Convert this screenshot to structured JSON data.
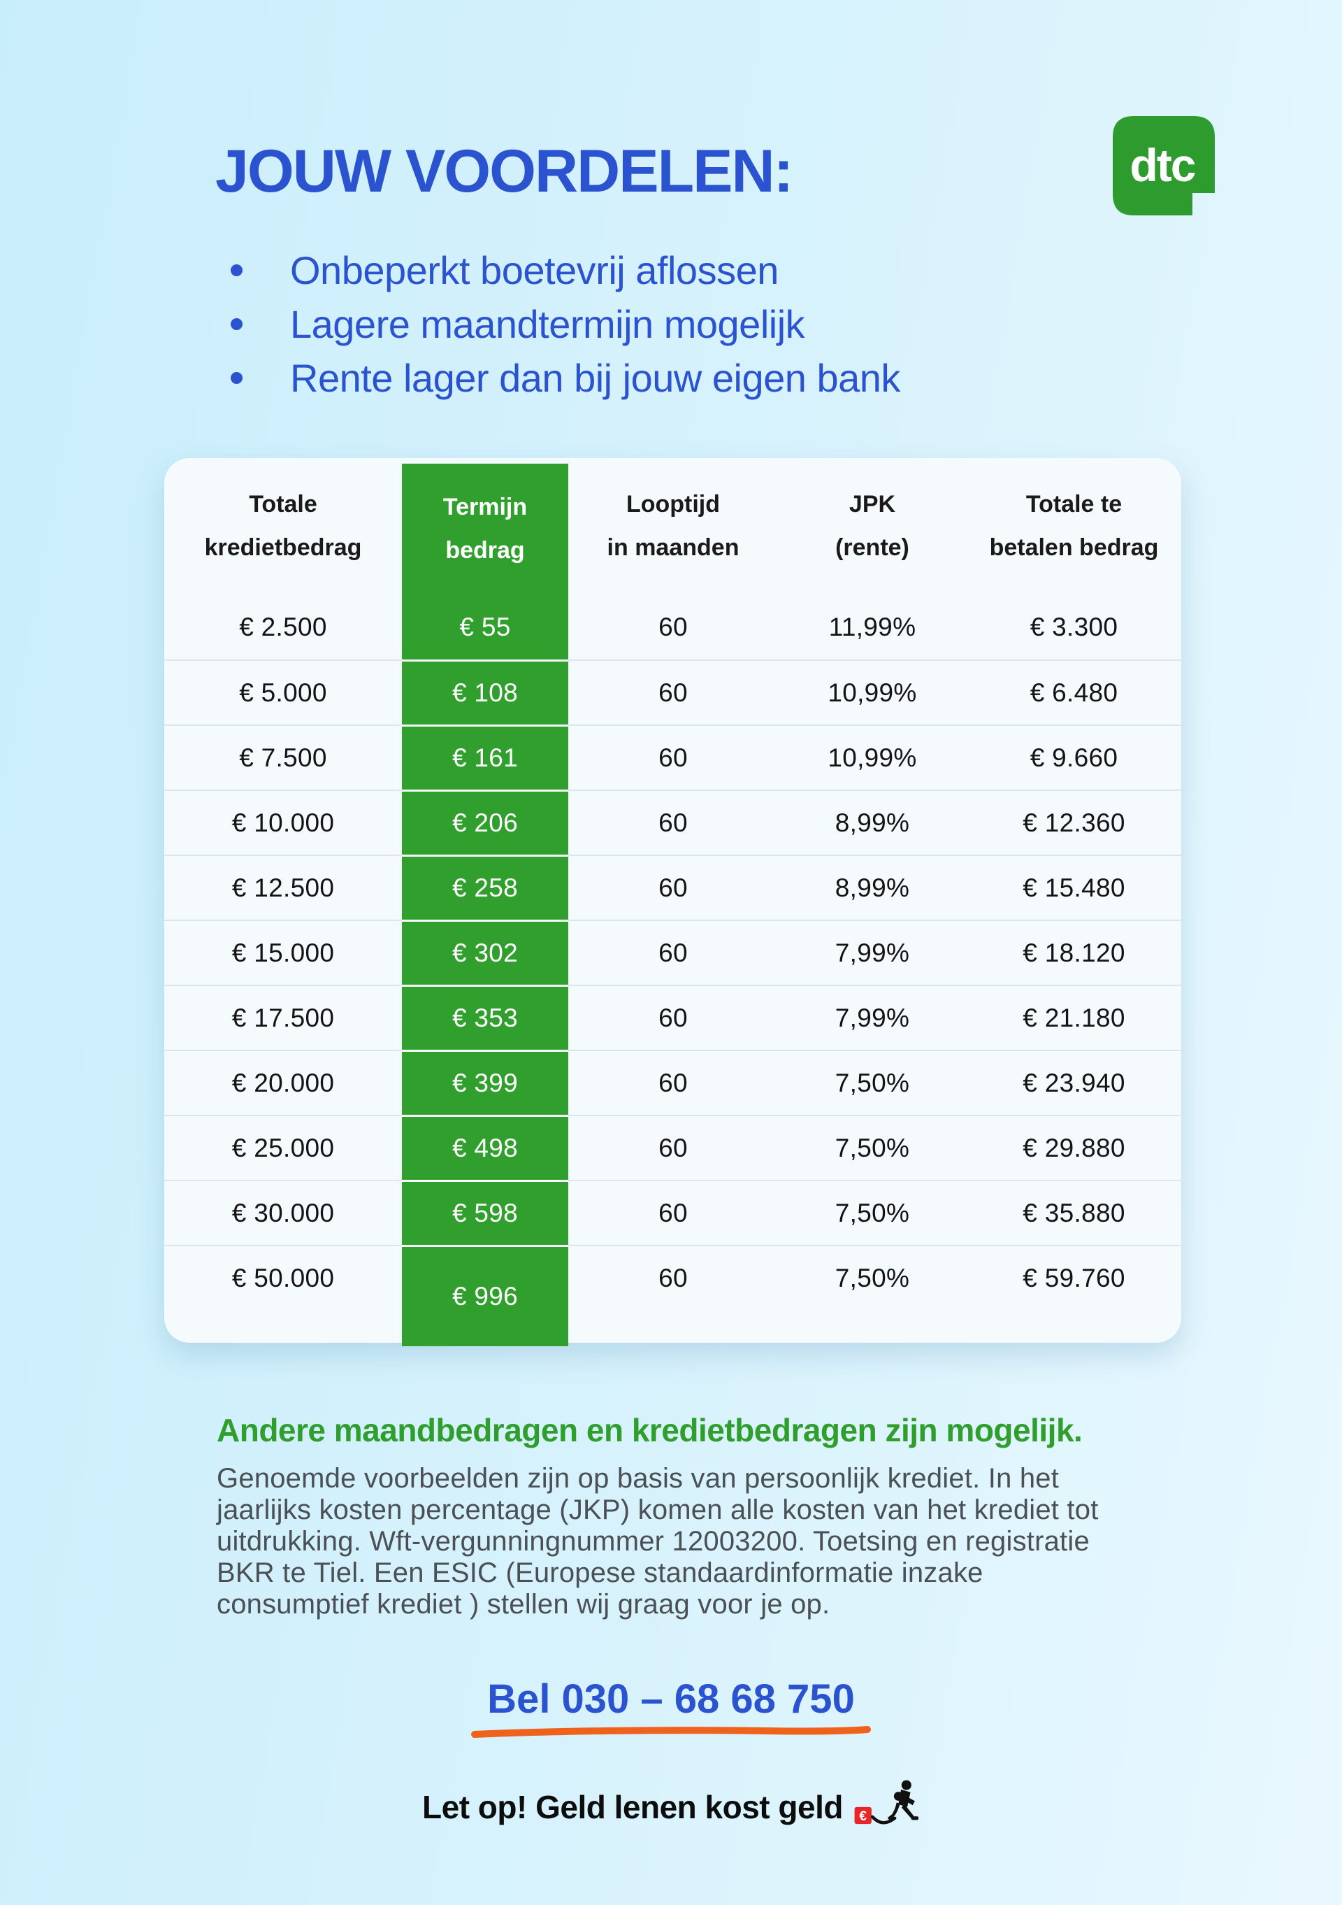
{
  "header": {
    "title": "JOUW VOORDELEN:",
    "bullets": [
      "Onbeperkt boetevrij aflossen",
      "Lagere maandtermijn mogelijk",
      "Rente lager dan bij jouw eigen bank"
    ],
    "logo_text": "dtc"
  },
  "table": {
    "headers": [
      "Totale\nkredietbedrag",
      "Termijn\nbedrag",
      "Looptijd\nin maanden",
      "JPK\n(rente)",
      "Totale te\nbetalen bedrag"
    ],
    "rows": [
      [
        "€ 2.500",
        "€ 55",
        "60",
        "11,99%",
        "€ 3.300"
      ],
      [
        "€ 5.000",
        "€ 108",
        "60",
        "10,99%",
        "€ 6.480"
      ],
      [
        "€ 7.500",
        "€ 161",
        "60",
        "10,99%",
        "€ 9.660"
      ],
      [
        "€ 10.000",
        "€ 206",
        "60",
        "8,99%",
        "€ 12.360"
      ],
      [
        "€ 12.500",
        "€ 258",
        "60",
        "8,99%",
        "€ 15.480"
      ],
      [
        "€ 15.000",
        "€ 302",
        "60",
        "7,99%",
        "€ 18.120"
      ],
      [
        "€ 17.500",
        "€ 353",
        "60",
        "7,99%",
        "€ 21.180"
      ],
      [
        "€ 20.000",
        "€ 399",
        "60",
        "7,50%",
        "€ 23.940"
      ],
      [
        "€ 25.000",
        "€ 498",
        "60",
        "7,50%",
        "€ 29.880"
      ],
      [
        "€ 30.000",
        "€ 598",
        "60",
        "7,50%",
        "€ 35.880"
      ],
      [
        "€ 50.000",
        "€ 996",
        "60",
        "7,50%",
        "€ 59.760"
      ]
    ]
  },
  "footer": {
    "highlight": "Andere maandbedragen en kredietbedragen zijn mogelijk.",
    "disclaimer": "Genoemde voorbeelden zijn op basis van persoonlijk krediet. In het\njaarlijks kosten percentage (JKP) komen alle kosten van het krediet tot\nuitdrukking. Wft-vergunningnummer 12003200. Toetsing en registratie\nBKR te Tiel. Een ESIC (Europese standaardinformatie inzake\nconsumptief krediet ) stellen wij graag voor je op.",
    "phone": "Bel 030 – 68 68 750",
    "warning": "Let op! Geld lenen kost geld",
    "euro_symbol": "€"
  },
  "colors": {
    "blue": "#2b53cf",
    "green": "#319f2d",
    "orange": "#f0611c",
    "red": "#e8262a"
  }
}
